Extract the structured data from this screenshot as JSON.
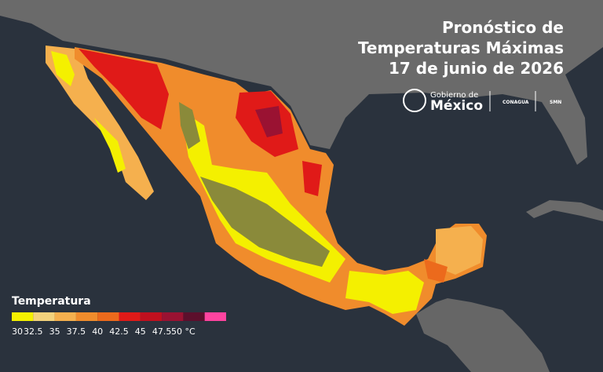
{
  "title": [
    "Pronóstico de",
    "Temperaturas Máximas",
    "17 de junio de 2026"
  ],
  "logos": {
    "gobierno": "Gobierno de",
    "mexico": "México",
    "conagua": "CONAGUA",
    "smn": "SMN"
  },
  "legend": {
    "title": "Temperatura",
    "colors": [
      "#f4f000",
      "#f3d27c",
      "#f5b04e",
      "#f08c2c",
      "#ec6a1c",
      "#e01a18",
      "#c0101e",
      "#9a1232",
      "#5c0f2c",
      "#ff44a0"
    ],
    "labels": [
      "30",
      "32.5",
      "35",
      "37.5",
      "40",
      "42.5",
      "45",
      "47.5",
      "50 °C"
    ]
  }
}
